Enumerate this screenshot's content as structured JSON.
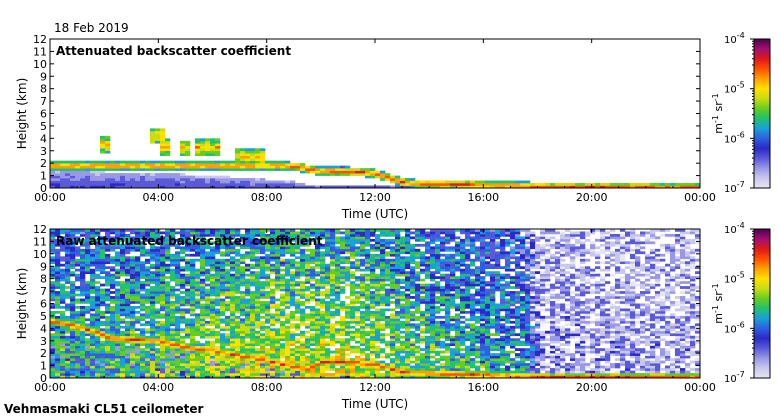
{
  "header": {
    "date": "18 Feb 2019"
  },
  "footer": {
    "instrument": "Vehmasmaki CL51 ceilometer"
  },
  "colors": {
    "scale": [
      "#e6e6f0",
      "#c8c8ee",
      "#9898e6",
      "#5a5ad8",
      "#2a2ac8",
      "#2f5fe0",
      "#1aa0d8",
      "#22c070",
      "#66cc22",
      "#c8dc14",
      "#ffe000",
      "#ffa000",
      "#ff5000",
      "#e01818",
      "#a01070",
      "#500050"
    ]
  },
  "chart_data": [
    {
      "type": "heatmap",
      "title": "Attenuated backscatter coefficient",
      "xlabel": "Time (UTC)",
      "ylabel": "Height (km)",
      "xlim": [
        0,
        24
      ],
      "ylim": [
        0,
        12
      ],
      "x_ticks": [
        "00:00",
        "04:00",
        "08:00",
        "12:00",
        "16:00",
        "20:00",
        "00:00"
      ],
      "y_ticks": [
        "0",
        "1",
        "2",
        "3",
        "4",
        "5",
        "6",
        "7",
        "8",
        "9",
        "10",
        "11",
        "12"
      ],
      "colorbar": {
        "scale": "log",
        "range": [
          1e-07,
          0.0001
        ],
        "ticks": [
          "10",
          "10",
          "10",
          "10"
        ],
        "tick_exponents": [
          "-7",
          "-6",
          "-5",
          "-4"
        ],
        "unit": "m",
        "unit_exp1": "-1",
        "unit2": " sr",
        "unit_exp2": "-1"
      },
      "features": [
        {
          "kind": "boundary-layer",
          "x": [
            0,
            2,
            4,
            6,
            8,
            9,
            9.5,
            12,
            14,
            16,
            18,
            22,
            24
          ],
          "y": [
            1.4,
            1.3,
            1.2,
            1.0,
            0.7,
            0.5,
            0.3,
            0.3,
            0.25,
            0.2,
            0.15,
            0.1,
            0.1
          ]
        },
        {
          "kind": "cloud-layer",
          "x": [
            8.6,
            9.2,
            9.8,
            11,
            12,
            12.8,
            13.5,
            15,
            17,
            18.5,
            24
          ],
          "y": [
            1.8,
            1.7,
            1.4,
            1.35,
            1.2,
            0.6,
            0.35,
            0.3,
            0.2,
            0.1,
            0.05
          ],
          "intensity": 0.82
        },
        {
          "kind": "cloud-patches",
          "x": [
            2,
            4,
            4.3,
            5,
            5.5,
            6,
            7,
            7.5,
            7.8
          ],
          "y": [
            3.5,
            4.2,
            3.3,
            3.2,
            3.3,
            3.3,
            2.6,
            2.5,
            2.5
          ],
          "intensity": 0.7
        }
      ]
    },
    {
      "type": "heatmap",
      "title": "Raw attenuated backscatter coefficient",
      "xlabel": "Time (UTC)",
      "ylabel": "Height (km)",
      "xlim": [
        0,
        24
      ],
      "ylim": [
        0,
        12
      ],
      "x_ticks": [
        "00:00",
        "04:00",
        "08:00",
        "12:00",
        "16:00",
        "20:00",
        "00:00"
      ],
      "y_ticks": [
        "0",
        "1",
        "2",
        "3",
        "4",
        "5",
        "6",
        "7",
        "8",
        "9",
        "10",
        "11",
        "12"
      ],
      "colorbar": {
        "scale": "log",
        "range": [
          1e-07,
          0.0001
        ],
        "ticks": [
          "10",
          "10",
          "10",
          "10"
        ],
        "tick_exponents": [
          "-7",
          "-6",
          "-5",
          "-4"
        ],
        "unit": "m",
        "unit_exp1": "-1",
        "unit2": " sr",
        "unit_exp2": "-1"
      },
      "features": [
        {
          "kind": "noise-field",
          "x": [
            0,
            4,
            8,
            11,
            14,
            17.5,
            18.2,
            24
          ],
          "level": [
            0.45,
            0.52,
            0.6,
            0.62,
            0.5,
            0.4,
            0.15,
            0.12
          ]
        },
        {
          "kind": "boundary-layer",
          "x": [
            0,
            2,
            4,
            6,
            8,
            9,
            9.5,
            12,
            14,
            16,
            18,
            22,
            24
          ],
          "y": [
            2.8,
            2.6,
            2.4,
            2.0,
            1.6,
            1.2,
            0.5,
            0.4,
            0.3,
            0.25,
            0.2,
            0.15,
            0.1
          ]
        },
        {
          "kind": "cloud-layer",
          "x": [
            0,
            1,
            2.3,
            4,
            5,
            6,
            7,
            8,
            9,
            9.5,
            10,
            11,
            12,
            13,
            15,
            18.5,
            24
          ],
          "y": [
            4.6,
            4.2,
            3.2,
            3.0,
            2.5,
            2.2,
            1.8,
            1.4,
            0.9,
            0.7,
            1.3,
            1.3,
            1.1,
            0.5,
            0.3,
            0.1,
            0.05
          ],
          "intensity": 0.82
        }
      ]
    }
  ]
}
